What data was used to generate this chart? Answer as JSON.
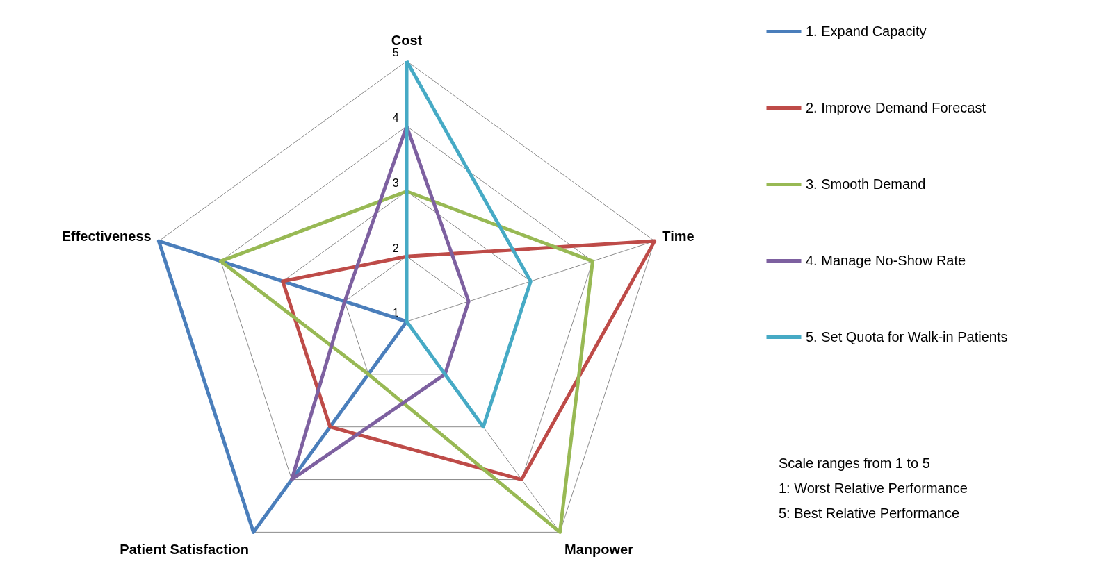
{
  "chart_data": {
    "type": "radar",
    "categories": [
      "Cost",
      "Time",
      "Manpower",
      "Patient Satisfaction",
      "Effectiveness"
    ],
    "ylim": [
      1,
      5
    ],
    "yticks": [
      1,
      2,
      3,
      4,
      5
    ],
    "grid": true,
    "legend": "right",
    "series": [
      {
        "name": "1. Expand Capacity",
        "color": "#4a7ebb",
        "values": [
          1,
          1,
          1,
          5,
          5
        ]
      },
      {
        "name": "2. Improve Demand Forecast",
        "color": "#be4b48",
        "values": [
          2,
          5,
          4,
          3,
          3
        ]
      },
      {
        "name": "3. Smooth Demand",
        "color": "#98b954",
        "values": [
          3,
          4,
          5,
          2,
          4
        ]
      },
      {
        "name": "4. Manage No-Show Rate",
        "color": "#7d60a0",
        "values": [
          4,
          2,
          2,
          4,
          2
        ]
      },
      {
        "name": "5. Set Quota for Walk-in Patients",
        "color": "#46aac5",
        "values": [
          5,
          3,
          3,
          1,
          1
        ]
      }
    ],
    "annotations": [
      "Scale ranges from 1 to 5",
      "1: Worst Relative Performance",
      "5: Best Relative Performance"
    ]
  }
}
